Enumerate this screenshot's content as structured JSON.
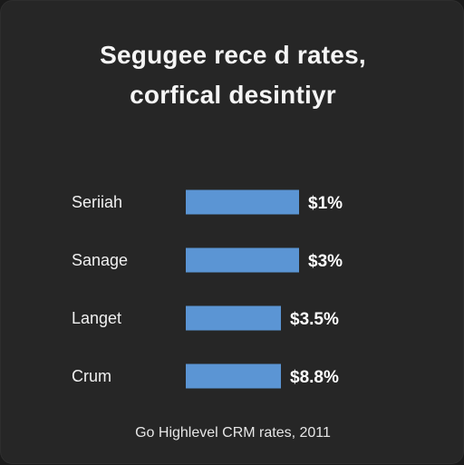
{
  "title_lines": [
    "Segugee rece d rates,",
    "corfical desintiyr"
  ],
  "caption": "Go Highlevel CRM rates, 2011",
  "colors": {
    "background": "#262626",
    "bar": "#5b95d4",
    "text": "#f5f5f5"
  },
  "chart_data": {
    "type": "bar",
    "orientation": "horizontal",
    "categories": [
      "Seriiah",
      "Sanage",
      "Langet",
      "Crum"
    ],
    "values": [
      1,
      3,
      3.5,
      8.8
    ],
    "value_labels": [
      "$1%",
      "$3%",
      "$3.5%",
      "$8.8%"
    ],
    "bar_fill_fraction": [
      1.0,
      1.0,
      0.84,
      0.84
    ],
    "title": "Segugee rece d rates, corfical desintiyr",
    "xlabel": "",
    "ylabel": "",
    "legend": "none",
    "grid": false
  }
}
